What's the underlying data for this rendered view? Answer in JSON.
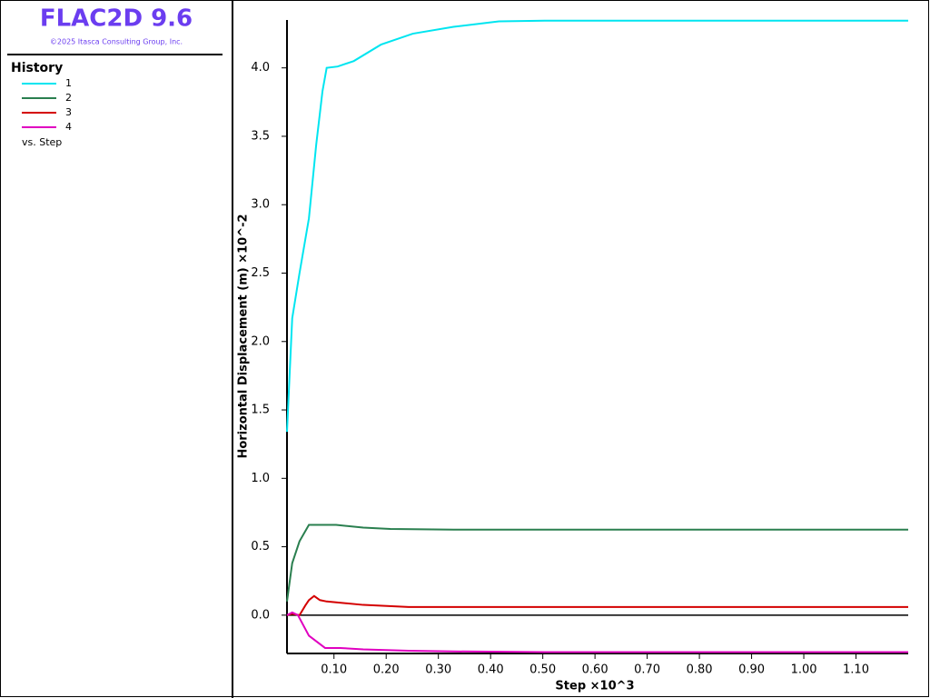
{
  "app": {
    "title": "FLAC2D 9.6",
    "copyright": "©2025 Itasca Consulting Group, Inc."
  },
  "chart_data": {
    "type": "line",
    "legend_title": "History",
    "legend_note": "vs. Step",
    "x_label": "Step ×10^3",
    "y_label": "Horizontal Displacement (m) ×10^-2",
    "xlim": [
      0.01,
      1.2
    ],
    "ylim": [
      -0.28,
      4.35
    ],
    "xticks": [
      {
        "value": 0.1,
        "label": "0.10"
      },
      {
        "value": 0.2,
        "label": "0.20"
      },
      {
        "value": 0.3,
        "label": "0.30"
      },
      {
        "value": 0.4,
        "label": "0.40"
      },
      {
        "value": 0.5,
        "label": "0.50"
      },
      {
        "value": 0.6,
        "label": "0.60"
      },
      {
        "value": 0.7,
        "label": "0.70"
      },
      {
        "value": 0.8,
        "label": "0.80"
      },
      {
        "value": 0.9,
        "label": "0.90"
      },
      {
        "value": 1.0,
        "label": "1.00"
      },
      {
        "value": 1.1,
        "label": "1.10"
      }
    ],
    "yticks": [
      {
        "value": 0,
        "label": "0.0"
      },
      0.5,
      {
        "value": 1,
        "label": "1.0"
      },
      1.5,
      {
        "value": 2,
        "label": "2.0"
      },
      2.5,
      {
        "value": 3,
        "label": "3.0"
      },
      3.5,
      {
        "value": 4,
        "label": "4.0"
      }
    ],
    "series": [
      {
        "name": "1",
        "color": "#00e5f0",
        "x": [
          0.01,
          0.02,
          0.034,
          0.052,
          0.066,
          0.078,
          0.086,
          0.107,
          0.138,
          0.19,
          0.251,
          0.329,
          0.416,
          0.503,
          1.2
        ],
        "values": [
          1.34,
          2.17,
          2.5,
          2.9,
          3.44,
          3.83,
          4.0,
          4.01,
          4.05,
          4.17,
          4.25,
          4.3,
          4.34,
          4.345,
          4.345
        ]
      },
      {
        "name": "2",
        "color": "#2a7f4f",
        "x": [
          0.01,
          0.02,
          0.034,
          0.052,
          0.069,
          0.104,
          0.156,
          0.208,
          0.329,
          1.2
        ],
        "values": [
          0.1,
          0.38,
          0.54,
          0.66,
          0.66,
          0.66,
          0.64,
          0.63,
          0.625,
          0.625
        ]
      },
      {
        "name": "3",
        "color": "#d40000",
        "x": [
          0.01,
          0.02,
          0.034,
          0.045,
          0.052,
          0.062,
          0.073,
          0.086,
          0.156,
          0.243,
          0.329,
          1.2
        ],
        "values": [
          0,
          0.01,
          0,
          0.07,
          0.11,
          0.14,
          0.11,
          0.1,
          0.075,
          0.06,
          0.06,
          0.06
        ]
      },
      {
        "name": "4",
        "color": "#e000c0",
        "x": [
          0.01,
          0.02,
          0.031,
          0.052,
          0.083,
          0.112,
          0.156,
          0.243,
          0.329,
          0.503,
          1.2
        ],
        "values": [
          0,
          0.02,
          0,
          -0.15,
          -0.24,
          -0.24,
          -0.25,
          -0.26,
          -0.265,
          -0.27,
          -0.27
        ]
      }
    ]
  }
}
